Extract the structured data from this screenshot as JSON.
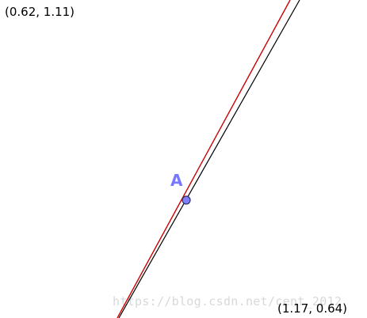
{
  "view": {
    "top_left_label": "(0.62, 1.11)",
    "bottom_right_label": "(1.17, 0.64)"
  },
  "point": {
    "name": "A",
    "fill": "#8080ff",
    "stroke": "#303060"
  },
  "curves": {
    "red": "#cc0000",
    "black": "#000000"
  },
  "watermark": "https://blog.csdn.net/cent_2012"
}
